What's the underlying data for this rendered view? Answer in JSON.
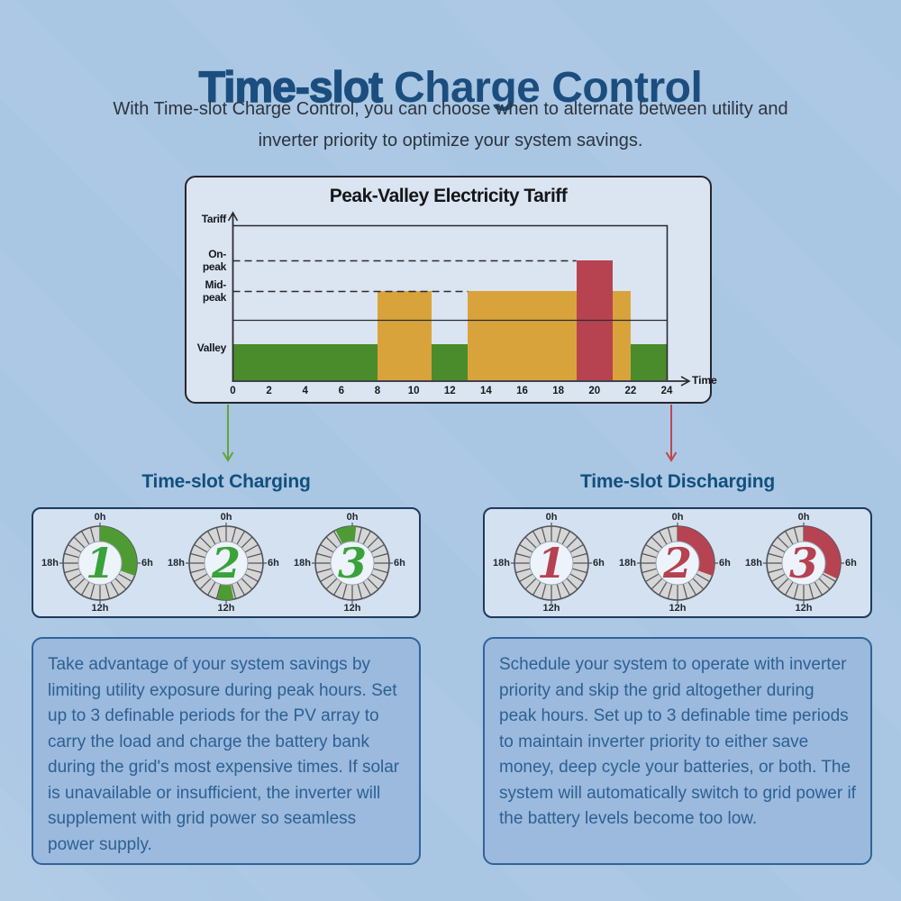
{
  "header": {
    "title_emphasis": "Time-slot",
    "title_rest": " Charge Control",
    "subtitle_line1": "With Time-slot Charge Control, you can choose when to alternate between utility and",
    "subtitle_line2": "inverter priority to optimize your system savings."
  },
  "chart_data": {
    "type": "bar",
    "title": "Peak-Valley Electricity Tariff",
    "x_axis_label": "Time",
    "y_axis_label": "Tariff",
    "x_range": [
      0,
      24
    ],
    "x_ticks": [
      0,
      2,
      4,
      6,
      8,
      10,
      12,
      14,
      16,
      18,
      20,
      22,
      24
    ],
    "y_levels": [
      "Valley",
      "Mid-peak",
      "On-peak"
    ],
    "grid": {
      "dashed_levels": [
        "On-peak",
        "Mid-peak"
      ],
      "on_peak_dash_end_hour": 19,
      "mid_peak_dash_end_hour": 13,
      "solid_reference_line": true
    },
    "segments": [
      {
        "from_hour": 0,
        "to_hour": 8,
        "level": "Valley",
        "color_key": "valley_green"
      },
      {
        "from_hour": 8,
        "to_hour": 11,
        "level": "Mid-peak",
        "color_key": "midpeak_yellow"
      },
      {
        "from_hour": 11,
        "to_hour": 13,
        "level": "Valley",
        "color_key": "valley_green"
      },
      {
        "from_hour": 13,
        "to_hour": 19,
        "level": "Mid-peak",
        "color_key": "midpeak_yellow"
      },
      {
        "from_hour": 19,
        "to_hour": 21,
        "level": "On-peak",
        "color_key": "onpeak_red"
      },
      {
        "from_hour": 21,
        "to_hour": 22,
        "level": "Mid-peak",
        "color_key": "midpeak_yellow"
      },
      {
        "from_hour": 22,
        "to_hour": 24,
        "level": "Valley",
        "color_key": "valley_green"
      }
    ],
    "colors": {
      "valley_green": "#4a8b2c",
      "midpeak_yellow": "#d9a33c",
      "onpeak_red": "#b6434f"
    }
  },
  "arrows": {
    "charging_color": "#63a33c",
    "discharging_color": "#c24553"
  },
  "charging": {
    "heading": "Time-slot Charging",
    "arc_color": "#4f9b33",
    "digit_color": "#3aa23a",
    "hour_labels": {
      "top": "0h",
      "right": "6h",
      "bottom": "12h",
      "left": "18h"
    },
    "clocks": [
      {
        "number": "1",
        "arc_start_deg": 0,
        "arc_end_deg": 110
      },
      {
        "number": "2",
        "arc_start_deg": 168,
        "arc_end_deg": 194
      },
      {
        "number": "3",
        "arc_start_deg": -27,
        "arc_end_deg": 6
      }
    ],
    "description": "Take advantage of your system savings by limiting utility exposure during peak hours. Set up to 3 definable periods for the PV array to carry the load and charge the battery bank during the grid's most expensive times. If solar is unavailable or insufficient, the inverter will supplement with grid power so seamless power supply."
  },
  "discharging": {
    "heading": "Time-slot Discharging",
    "arc_color": "#b64352",
    "digit_color": "#b64150",
    "hour_labels": {
      "top": "0h",
      "right": "6h",
      "bottom": "12h",
      "left": "18h"
    },
    "clocks": [
      {
        "number": "1",
        "arc_start_deg": null,
        "arc_end_deg": null
      },
      {
        "number": "2",
        "arc_start_deg": 0,
        "arc_end_deg": 110
      },
      {
        "number": "3",
        "arc_start_deg": 0,
        "arc_end_deg": 115
      }
    ],
    "description": "Schedule your system to operate with inverter priority and skip the grid altogether during peak hours. Set up to 3 definable time periods to maintain inverter priority to either save money, deep cycle your batteries, or both. The system will automatically switch to grid power if the battery levels become too low."
  }
}
